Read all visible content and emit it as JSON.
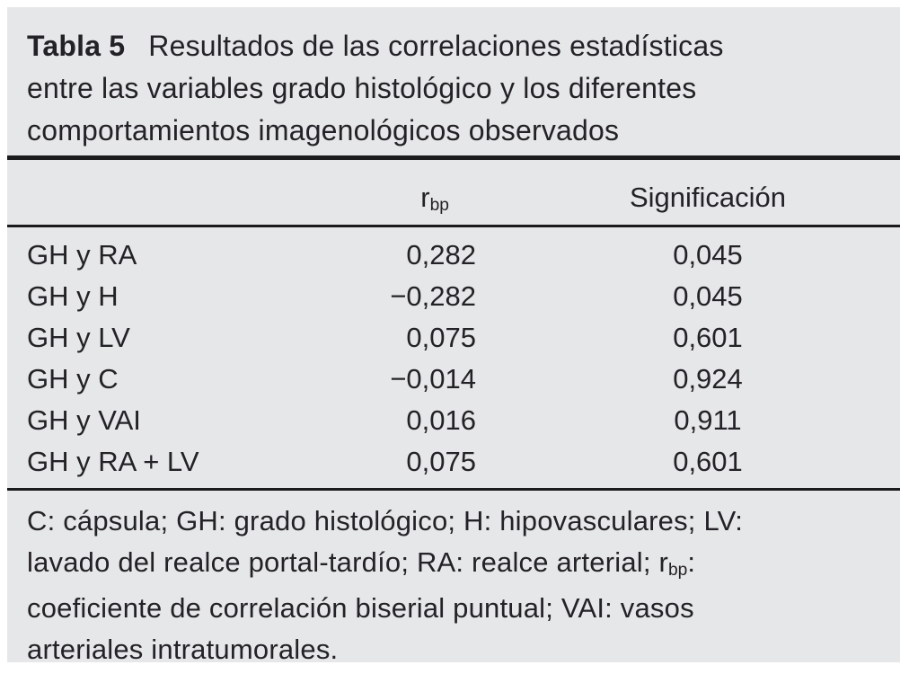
{
  "title": {
    "label": "Tabla 5",
    "caption": "Resultados de las correlaciones estadísticas entre las variables grado histológico y los diferentes comportamientos imagenológicos observados"
  },
  "table": {
    "header": {
      "rbp_base": "r",
      "rbp_sub": "bp",
      "significance": "Significación"
    },
    "rows": [
      {
        "label": "GH y RA",
        "rbp": "0,282",
        "sig": "0,045"
      },
      {
        "label": "GH y H",
        "rbp": "−0,282",
        "sig": "0,045"
      },
      {
        "label": "GH y LV",
        "rbp": "0,075",
        "sig": "0,601"
      },
      {
        "label": "GH y C",
        "rbp": "−0,014",
        "sig": "0,924"
      },
      {
        "label": "GH y VAI",
        "rbp": "0,016",
        "sig": "0,911"
      },
      {
        "label": "GH y RA + LV",
        "rbp": "0,075",
        "sig": "0,601"
      }
    ]
  },
  "footnote": {
    "part1": "C: cápsula; GH: grado histológico; H: hipovasculares; LV: lavado del realce portal-tardío; RA: realce arterial; r",
    "rbp_sub": "bp",
    "part2": ": coeficiente de correlación biserial puntual; VAI: vasos arteriales intratumorales."
  },
  "colors": {
    "panel_background": "#e6e7e8",
    "text": "#232227",
    "rule": "#1b1a1d"
  },
  "chart_data": {
    "type": "table",
    "title": "Tabla 5 Resultados de las correlaciones estadísticas entre las variables grado histológico y los diferentes comportamientos imagenológicos observados",
    "columns": [
      "",
      "r_bp",
      "Significación"
    ],
    "rows": [
      [
        "GH y RA",
        0.282,
        0.045
      ],
      [
        "GH y H",
        -0.282,
        0.045
      ],
      [
        "GH y LV",
        0.075,
        0.601
      ],
      [
        "GH y C",
        -0.014,
        0.924
      ],
      [
        "GH y VAI",
        0.016,
        0.911
      ],
      [
        "GH y RA + LV",
        0.075,
        0.601
      ]
    ],
    "footnote": "C: cápsula; GH: grado histológico; H: hipovasculares; LV: lavado del realce portal-tardío; RA: realce arterial; r_bp: coeficiente de correlación biserial puntual; VAI: vasos arteriales intratumorales."
  }
}
